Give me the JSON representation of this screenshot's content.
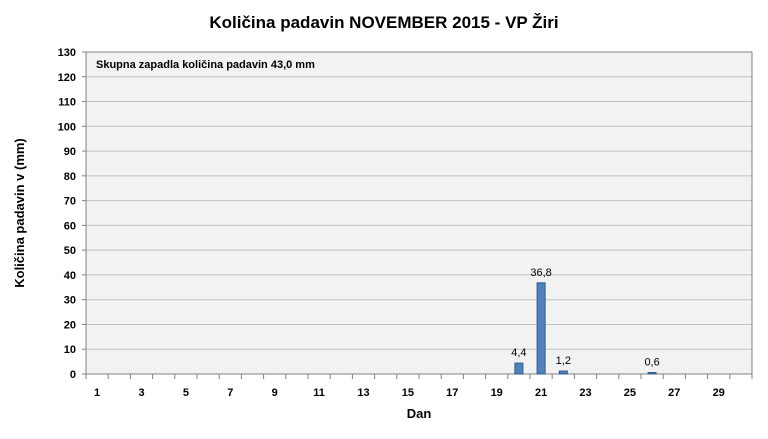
{
  "chart_data": {
    "type": "bar",
    "title": "Količina padavin NOVEMBER 2015 - VP Žiri",
    "xlabel": "Dan",
    "ylabel": "Količina padavin v  (mm)",
    "annotation": "Skupna zapadla količina padavin  43,0 mm",
    "ylim": [
      0,
      130
    ],
    "y_ticks": [
      "0",
      "10",
      "20",
      "30",
      "40",
      "50",
      "60",
      "70",
      "80",
      "90",
      "100",
      "110",
      "120",
      "130"
    ],
    "x": [
      1,
      2,
      3,
      4,
      5,
      6,
      7,
      8,
      9,
      10,
      11,
      12,
      13,
      14,
      15,
      16,
      17,
      18,
      19,
      20,
      21,
      22,
      23,
      24,
      25,
      26,
      27,
      28,
      29,
      30
    ],
    "x_tick_labels": [
      "1",
      "3",
      "5",
      "7",
      "9",
      "11",
      "13",
      "15",
      "17",
      "19",
      "21",
      "23",
      "25",
      "27",
      "29"
    ],
    "values": [
      0,
      0,
      0,
      0,
      0,
      0,
      0,
      0,
      0,
      0,
      0,
      0,
      0,
      0,
      0,
      0,
      0,
      0,
      0,
      4.4,
      36.8,
      1.2,
      0,
      0,
      0,
      0.6,
      0,
      0,
      0,
      0
    ],
    "data_labels": {
      "20": "4,4",
      "21": "36,8",
      "22": "1,2",
      "26": "0,6"
    },
    "grid": true,
    "colors": {
      "bar": "#4f81bd",
      "bar_stroke": "#2f5b8f",
      "plot_bg": "#f2f2f2",
      "grid": "#c0c0c0",
      "axis": "#808080"
    }
  }
}
